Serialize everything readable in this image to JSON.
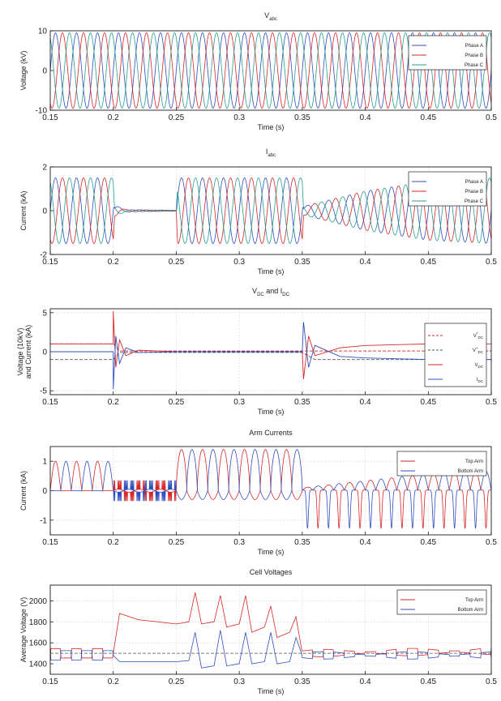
{
  "colors": {
    "phase_a": "#2f4fbf",
    "phase_b": "#d62728",
    "phase_c": "#2a9d8f",
    "top_arm": "#d62728",
    "bottom_arm": "#2f4fbf",
    "dashed": "#555555"
  },
  "chart_data": [
    {
      "type": "line",
      "title": "V_abc",
      "title_main": "V",
      "title_sub": "abc",
      "xlabel": "Time (s)",
      "ylabel": "Voltage (kV)",
      "xlim": [
        0.15,
        0.5
      ],
      "ylim": [
        -10,
        10
      ],
      "xticks": [
        "0.15",
        "0.2",
        "0.25",
        "0.3",
        "0.35",
        "0.4",
        "0.45",
        "0.5"
      ],
      "yticks": [
        "10",
        "0",
        "-10"
      ],
      "ytick_values": [
        10,
        0,
        -10
      ],
      "grid": true,
      "legend_position": "top-right",
      "series": [
        {
          "name": "Phase A",
          "amplitude": 9.5,
          "frequency_hz": 60,
          "phase_deg": 0
        },
        {
          "name": "Phase B",
          "amplitude": 9.5,
          "frequency_hz": 60,
          "phase_deg": -120
        },
        {
          "name": "Phase C",
          "amplitude": 9.5,
          "frequency_hz": 60,
          "phase_deg": 120
        }
      ]
    },
    {
      "type": "line",
      "title": "I_abc",
      "title_main": "I",
      "title_sub": "abc",
      "xlabel": "Time (s)",
      "ylabel": "Current (kA)",
      "xlim": [
        0.15,
        0.5
      ],
      "ylim": [
        -2,
        2
      ],
      "xticks": [
        "0.15",
        "0.2",
        "0.25",
        "0.3",
        "0.35",
        "0.4",
        "0.45",
        "0.5"
      ],
      "yticks": [
        "2",
        "0",
        "-2"
      ],
      "ytick_values": [
        2,
        0,
        -2
      ],
      "grid": true,
      "legend_position": "top-right",
      "amplitude_profile": [
        [
          0.15,
          1.5
        ],
        [
          0.2,
          1.5
        ],
        [
          0.201,
          0.25
        ],
        [
          0.21,
          0.05
        ],
        [
          0.25,
          0.02
        ],
        [
          0.251,
          1.5
        ],
        [
          0.35,
          1.5
        ],
        [
          0.351,
          0.2
        ],
        [
          0.4,
          0.9
        ],
        [
          0.45,
          1.35
        ],
        [
          0.5,
          1.5
        ]
      ],
      "series": [
        {
          "name": "Phase A",
          "frequency_hz": 60,
          "phase_deg": 0
        },
        {
          "name": "Phase B",
          "frequency_hz": 60,
          "phase_deg": -120
        },
        {
          "name": "Phase C",
          "frequency_hz": 60,
          "phase_deg": 120
        }
      ]
    },
    {
      "type": "line",
      "title": "V_DC and I_DC",
      "title_main": "V",
      "title_sub": "DC",
      "title_mid": " and I",
      "title_sub2": "DC",
      "xlabel": "Time (s)",
      "ylabel": "Voltage (10kV)",
      "ylabel2": "and Current (kA)",
      "xlim": [
        0.15,
        0.5
      ],
      "ylim": [
        -5.5,
        5.5
      ],
      "xticks": [
        "0.15",
        "0.2",
        "0.25",
        "0.3",
        "0.35",
        "0.4",
        "0.45",
        "0.5"
      ],
      "yticks": [
        "5",
        "0",
        "-5"
      ],
      "ytick_values": [
        5,
        0,
        -5
      ],
      "grid": true,
      "legend_position": "right",
      "legend_labels": [
        {
          "main": "V",
          "sup": "*",
          "sub": "DC"
        },
        {
          "main": "V",
          "sup": "+",
          "sub": "DC"
        },
        {
          "main": "V",
          "sup": "",
          "sub": "DC"
        },
        {
          "main": "I",
          "sup": "",
          "sub": "DC"
        }
      ],
      "series": [
        {
          "name": "V*_DC",
          "style": "dashed",
          "points": [
            [
              0.15,
              1.0
            ],
            [
              0.2,
              1.0
            ],
            [
              0.205,
              0.1
            ],
            [
              0.35,
              0.1
            ],
            [
              0.5,
              0.1
            ]
          ]
        },
        {
          "name": "V+_DC",
          "style": "dashed",
          "points": [
            [
              0.15,
              -1.0
            ],
            [
              0.2,
              -1.0
            ],
            [
              0.205,
              -0.1
            ],
            [
              0.35,
              -0.1
            ],
            [
              0.36,
              -1.0
            ],
            [
              0.5,
              -1.0
            ]
          ]
        },
        {
          "name": "V_DC",
          "style": "solid",
          "points": [
            [
              0.15,
              1.0
            ],
            [
              0.2,
              1.0
            ],
            [
              0.2,
              5.2
            ],
            [
              0.202,
              -2.0
            ],
            [
              0.205,
              1.5
            ],
            [
              0.21,
              -0.5
            ],
            [
              0.22,
              0.2
            ],
            [
              0.25,
              0.0
            ],
            [
              0.35,
              0.0
            ],
            [
              0.351,
              -3.5
            ],
            [
              0.355,
              2.0
            ],
            [
              0.36,
              -0.5
            ],
            [
              0.38,
              0.5
            ],
            [
              0.4,
              0.8
            ],
            [
              0.45,
              1.0
            ],
            [
              0.5,
              1.0
            ]
          ]
        },
        {
          "name": "I_DC",
          "style": "solid",
          "points": [
            [
              0.15,
              0.0
            ],
            [
              0.2,
              0.0
            ],
            [
              0.2,
              -4.8
            ],
            [
              0.202,
              2.0
            ],
            [
              0.205,
              -1.5
            ],
            [
              0.21,
              0.5
            ],
            [
              0.22,
              -0.1
            ],
            [
              0.25,
              0.0
            ],
            [
              0.35,
              0.0
            ],
            [
              0.351,
              3.8
            ],
            [
              0.355,
              -2.0
            ],
            [
              0.36,
              0.8
            ],
            [
              0.38,
              -0.6
            ],
            [
              0.4,
              -0.8
            ],
            [
              0.45,
              -1.0
            ],
            [
              0.5,
              -1.0
            ]
          ]
        }
      ]
    },
    {
      "type": "line",
      "title": "Arm Currents",
      "xlabel": "Time (s)",
      "ylabel": "Current (kA)",
      "xlim": [
        0.15,
        0.5
      ],
      "ylim": [
        -1.5,
        1.5
      ],
      "xticks": [
        "0.15",
        "0.2",
        "0.25",
        "0.3",
        "0.35",
        "0.4",
        "0.45",
        "0.5"
      ],
      "yticks": [
        "1",
        "0",
        "-1"
      ],
      "ytick_values": [
        1,
        0,
        -1
      ],
      "grid": true,
      "legend_position": "top-right",
      "series": [
        {
          "name": "Top Arm",
          "description": "rectified half-waves 0.15-0.2 (peak ~1.0), small spikes 0.2-0.25, large alternating pulses 0.25-0.35 (peak ~1.4), negative spikes after 0.35"
        },
        {
          "name": "Bottom Arm",
          "description": "mirror of top arm, shifted half cycle"
        }
      ]
    },
    {
      "type": "line",
      "title": "Cell Voltages",
      "xlabel": "Time (s)",
      "ylabel": "Average Voltage (V)",
      "xlim": [
        0.15,
        0.5
      ],
      "ylim": [
        1300,
        2150
      ],
      "xticks": [
        "0.15",
        "0.2",
        "0.25",
        "0.3",
        "0.35",
        "0.4",
        "0.45",
        "0.5"
      ],
      "yticks": [
        "2000",
        "1800",
        "1600",
        "1400"
      ],
      "ytick_values": [
        2000,
        1800,
        1600,
        1400
      ],
      "grid": true,
      "legend_position": "top-right",
      "reference_line": 1500,
      "series": [
        {
          "name": "Top Arm",
          "points": [
            [
              0.15,
              1500
            ],
            [
              0.2,
              1500
            ],
            [
              0.205,
              1880
            ],
            [
              0.22,
              1820
            ],
            [
              0.25,
              1780
            ],
            [
              0.26,
              1800
            ],
            [
              0.265,
              2080
            ],
            [
              0.27,
              1780
            ],
            [
              0.28,
              1800
            ],
            [
              0.285,
              2050
            ],
            [
              0.29,
              1750
            ],
            [
              0.3,
              1780
            ],
            [
              0.305,
              2050
            ],
            [
              0.31,
              1700
            ],
            [
              0.32,
              1750
            ],
            [
              0.325,
              1950
            ],
            [
              0.33,
              1650
            ],
            [
              0.34,
              1700
            ],
            [
              0.345,
              1850
            ],
            [
              0.35,
              1500
            ],
            [
              0.5,
              1520
            ]
          ]
        },
        {
          "name": "Bottom Arm",
          "points": [
            [
              0.15,
              1480
            ],
            [
              0.2,
              1480
            ],
            [
              0.205,
              1420
            ],
            [
              0.22,
              1420
            ],
            [
              0.25,
              1420
            ],
            [
              0.26,
              1430
            ],
            [
              0.265,
              1700
            ],
            [
              0.27,
              1360
            ],
            [
              0.28,
              1380
            ],
            [
              0.285,
              1720
            ],
            [
              0.29,
              1380
            ],
            [
              0.3,
              1400
            ],
            [
              0.305,
              1700
            ],
            [
              0.31,
              1400
            ],
            [
              0.32,
              1420
            ],
            [
              0.325,
              1700
            ],
            [
              0.33,
              1400
            ],
            [
              0.34,
              1420
            ],
            [
              0.345,
              1650
            ],
            [
              0.35,
              1480
            ],
            [
              0.5,
              1480
            ]
          ]
        }
      ]
    }
  ]
}
